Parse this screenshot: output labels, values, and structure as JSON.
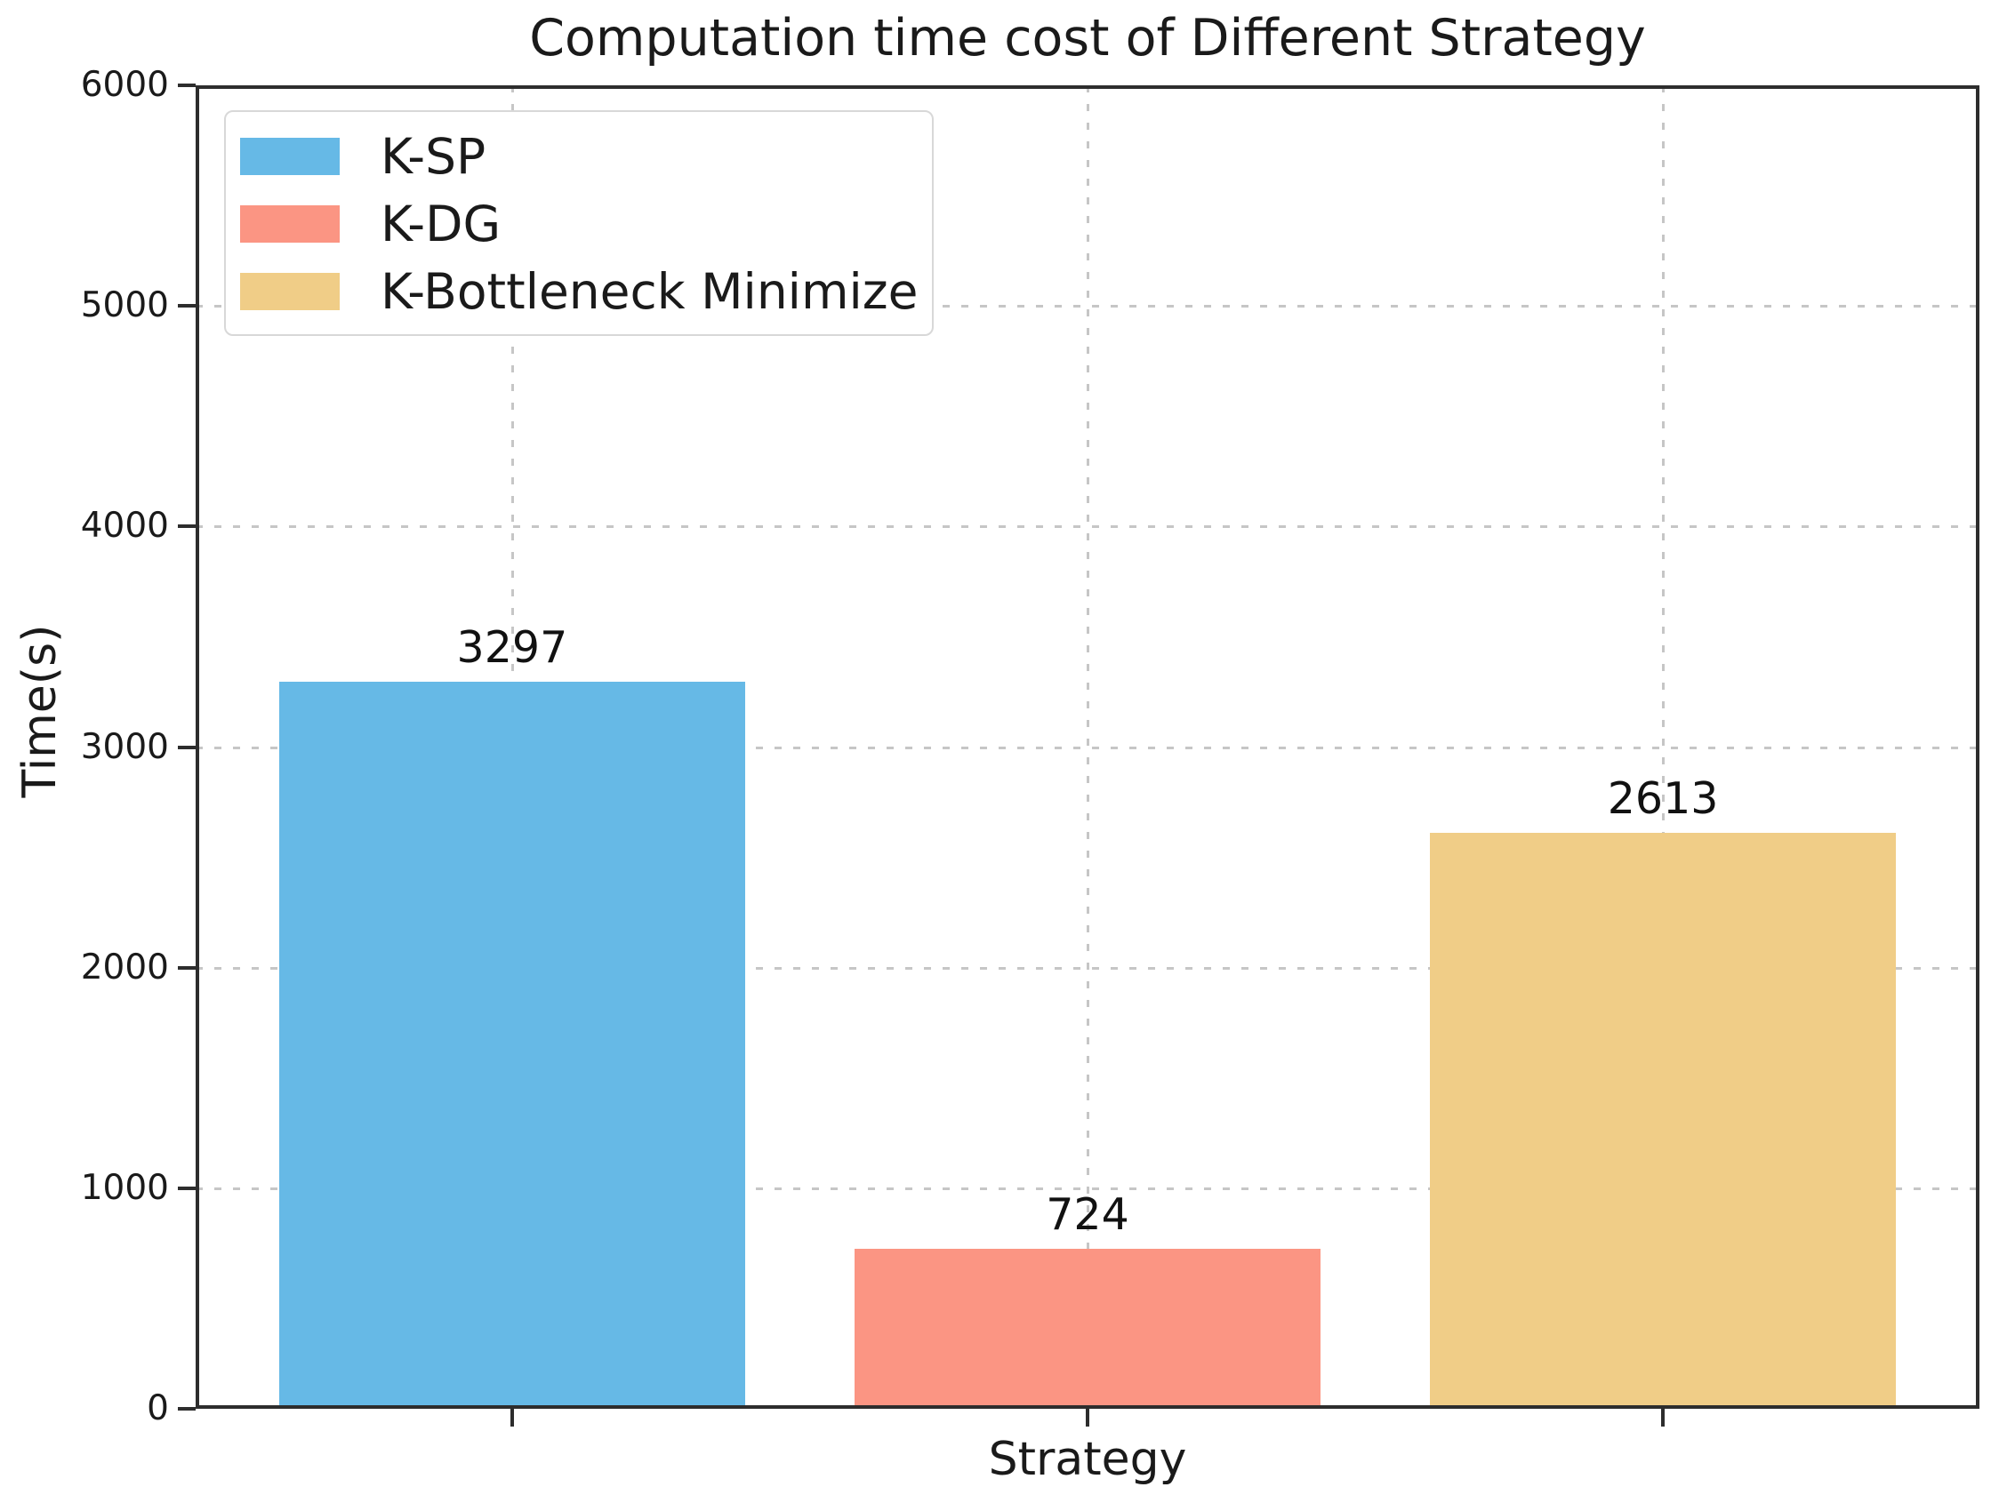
{
  "figure": {
    "background": "#ffffff",
    "text_color": "#1a1a1a",
    "axis_color": "#2d2d2d",
    "grid_color": "#c6c6c6"
  },
  "chart_data": {
    "type": "bar",
    "title": "Computation time cost of Different Strategy",
    "xlabel": "Strategy",
    "ylabel": "Time(s)",
    "categories": [
      "K-SP",
      "K-DG",
      "K-Bottleneck Minimize"
    ],
    "values": [
      3297,
      724,
      2613
    ],
    "bar_value_labels": [
      "3297",
      "724",
      "2613"
    ],
    "bar_colors": [
      "#66b9e6",
      "#fb9583",
      "#f0cd87"
    ],
    "y_ticks": [
      0,
      1000,
      2000,
      3000,
      4000,
      5000,
      6000
    ],
    "ylim": [
      0,
      6000
    ],
    "xlim": [
      -0.55,
      2.55
    ],
    "bar_width": 0.81,
    "grid": {
      "style": "dashed",
      "axes": "both"
    },
    "legend": {
      "position": "upper left",
      "entries": [
        "K-SP",
        "K-DG",
        "K-Bottleneck Minimize"
      ]
    }
  }
}
